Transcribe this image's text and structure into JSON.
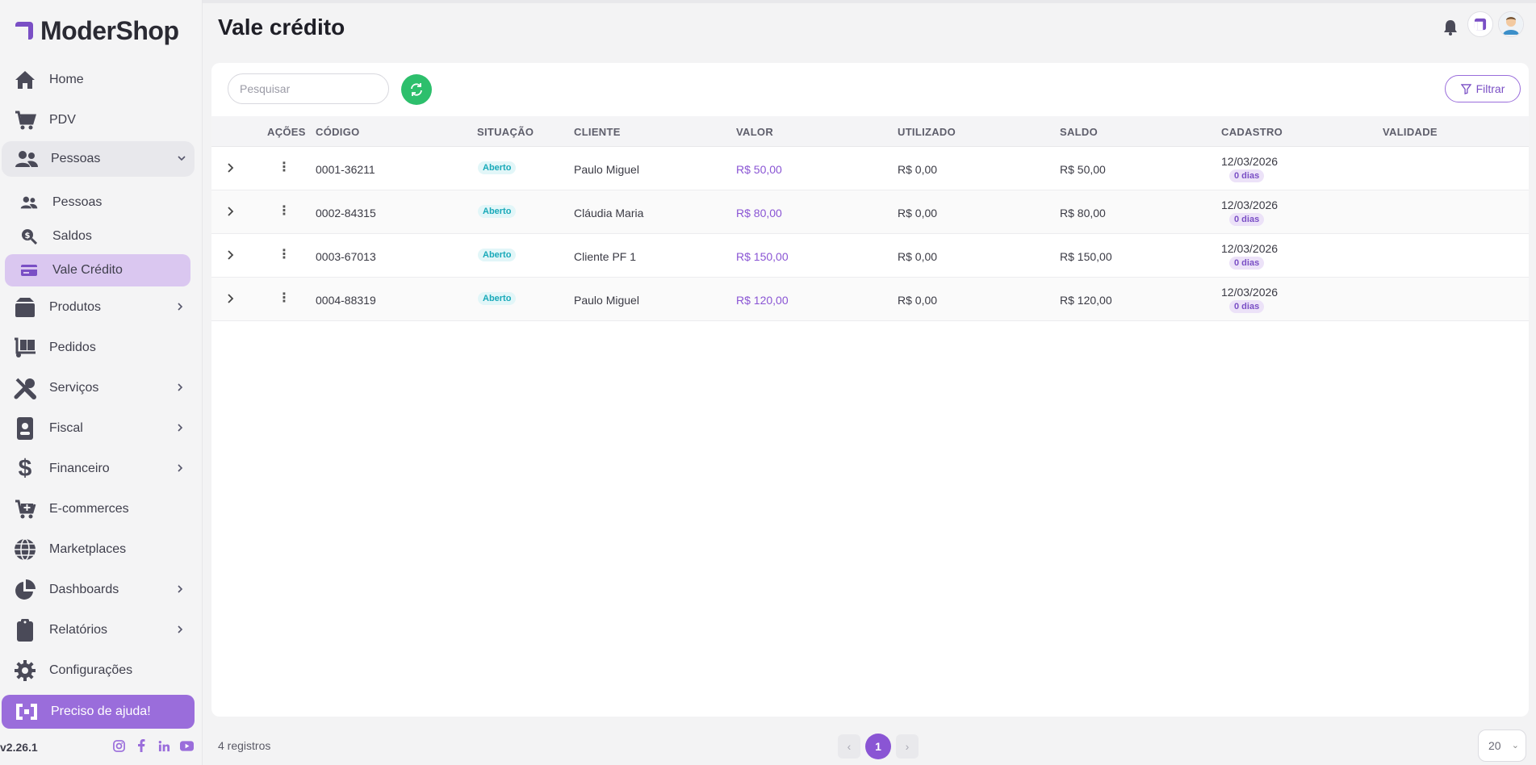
{
  "app": {
    "logo_text": "ModerShop",
    "version": "v2.26.1"
  },
  "header": {
    "title": "Vale crédito"
  },
  "sidebar": {
    "items": [
      {
        "label": "Home",
        "icon": "home-icon"
      },
      {
        "label": "PDV",
        "icon": "cart-icon"
      },
      {
        "label": "Pessoas",
        "icon": "people-icon",
        "expanded": true
      },
      {
        "label": "Produtos",
        "icon": "box-icon"
      },
      {
        "label": "Pedidos",
        "icon": "dolly-icon"
      },
      {
        "label": "Serviços",
        "icon": "tools-icon"
      },
      {
        "label": "Fiscal",
        "icon": "badge-icon"
      },
      {
        "label": "Financeiro",
        "icon": "dollar-icon"
      },
      {
        "label": "E-commerces",
        "icon": "cart-plus-icon"
      },
      {
        "label": "Marketplaces",
        "icon": "globe-icon"
      },
      {
        "label": "Dashboards",
        "icon": "pie-chart-icon"
      },
      {
        "label": "Relatórios",
        "icon": "clipboard-icon"
      },
      {
        "label": "Configurações",
        "icon": "gear-icon"
      }
    ],
    "subitems": [
      {
        "label": "Pessoas",
        "icon": "people-icon"
      },
      {
        "label": "Saldos",
        "icon": "search-dollar-icon"
      },
      {
        "label": "Vale Crédito",
        "icon": "credit-card-icon",
        "active": true
      }
    ],
    "help_label": "Preciso de ajuda!"
  },
  "toolbar": {
    "search_placeholder": "Pesquisar",
    "filter_label": "Filtrar"
  },
  "table": {
    "columns": [
      "AÇÕES",
      "CÓDIGO",
      "SITUAÇÃO",
      "CLIENTE",
      "VALOR",
      "UTILIZADO",
      "SALDO",
      "CADASTRO",
      "VALIDADE"
    ],
    "rows": [
      {
        "codigo": "0001-36211",
        "situacao": "Aberto",
        "cliente": "Paulo Miguel",
        "valor": "R$ 50,00",
        "utilizado": "R$ 0,00",
        "saldo": "R$ 50,00",
        "cadastro": "12/03/2026",
        "dias": "0 dias",
        "validade": ""
      },
      {
        "codigo": "0002-84315",
        "situacao": "Aberto",
        "cliente": "Cláudia Maria",
        "valor": "R$ 80,00",
        "utilizado": "R$ 0,00",
        "saldo": "R$ 80,00",
        "cadastro": "12/03/2026",
        "dias": "0 dias",
        "validade": ""
      },
      {
        "codigo": "0003-67013",
        "situacao": "Aberto",
        "cliente": "Cliente PF 1",
        "valor": "R$ 150,00",
        "utilizado": "R$ 0,00",
        "saldo": "R$ 150,00",
        "cadastro": "12/03/2026",
        "dias": "0 dias",
        "validade": ""
      },
      {
        "codigo": "0004-88319",
        "situacao": "Aberto",
        "cliente": "Paulo Miguel",
        "valor": "R$ 120,00",
        "utilizado": "R$ 0,00",
        "saldo": "R$ 120,00",
        "cadastro": "12/03/2026",
        "dias": "0 dias",
        "validade": ""
      }
    ]
  },
  "footer": {
    "records": "4 registros",
    "current_page": "1",
    "page_size": "20"
  },
  "colors": {
    "accent": "#8a55d4",
    "refresh": "#2dbf6c",
    "active_bg": "#dac7f0",
    "badge_text": "#19a9b9"
  }
}
